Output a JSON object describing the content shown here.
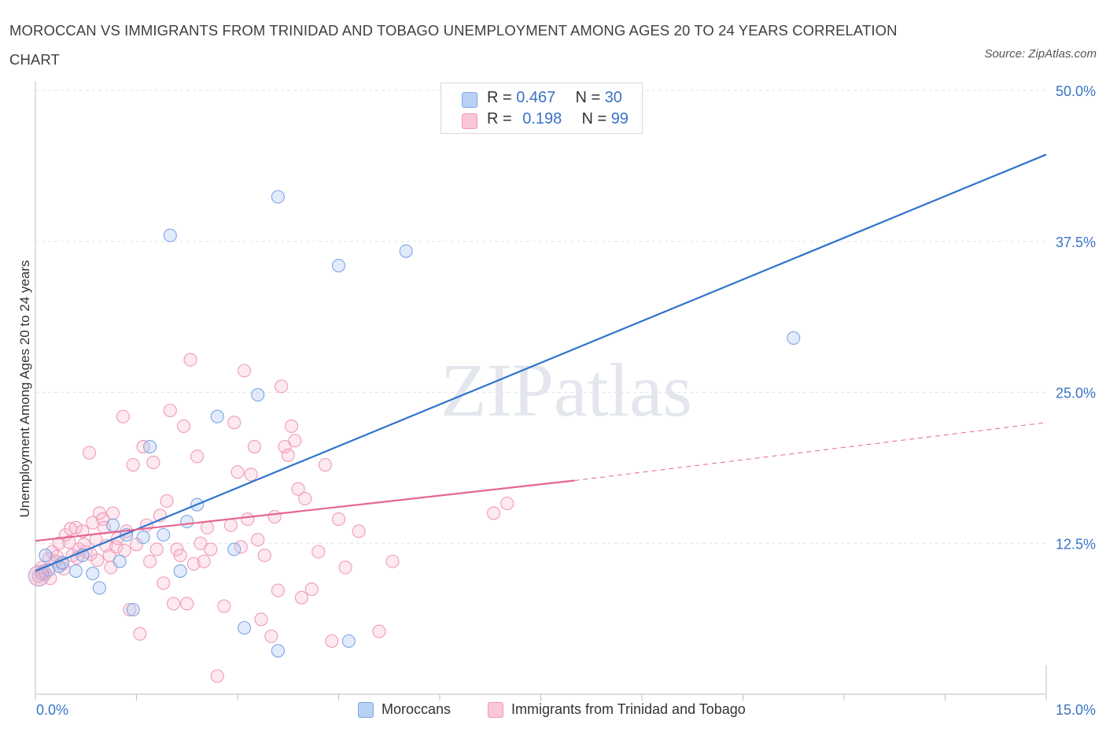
{
  "chart_data": {
    "type": "scatter",
    "title": "MOROCCAN VS IMMIGRANTS FROM TRINIDAD AND TOBAGO UNEMPLOYMENT AMONG AGES 20 TO 24 YEARS CORRELATION CHART",
    "source": "Source: ZipAtlas.com",
    "xlabel": "",
    "ylabel": "Unemployment Among Ages 20 to 24 years",
    "xlim": [
      0,
      15
    ],
    "ylim": [
      0,
      50
    ],
    "x_tick_labels": [
      "0.0%",
      "15.0%"
    ],
    "y_ticks": [
      12.5,
      25,
      37.5,
      50
    ],
    "y_tick_labels": [
      "12.5%",
      "25.0%",
      "37.5%",
      "50.0%"
    ],
    "grid": true,
    "watermark": "ZIPatlas",
    "stats_box": {
      "rows": [
        {
          "r_label": "R =",
          "r_value": "0.467",
          "n_label": "N =",
          "n_value": "30"
        },
        {
          "r_label": "R =",
          "r_value": "0.198",
          "n_label": "N =",
          "n_value": "99"
        }
      ]
    },
    "series": [
      {
        "name": "Moroccans",
        "color": "#8fb5ec",
        "line_color": "#2f74cc",
        "r": 0.467,
        "n": 30,
        "trendline": {
          "x": [
            0,
            15
          ],
          "y": [
            10.2,
            44.7
          ]
        },
        "points": [
          [
            0.1,
            10.0
          ],
          [
            0.15,
            11.5
          ],
          [
            0.2,
            10.3
          ],
          [
            0.35,
            10.6
          ],
          [
            0.4,
            10.9
          ],
          [
            0.6,
            10.2
          ],
          [
            0.7,
            11.5
          ],
          [
            0.85,
            10.0
          ],
          [
            0.95,
            8.8
          ],
          [
            1.15,
            14.0
          ],
          [
            1.25,
            11.0
          ],
          [
            1.35,
            13.2
          ],
          [
            1.45,
            7.0
          ],
          [
            1.6,
            13.0
          ],
          [
            1.7,
            20.5
          ],
          [
            1.9,
            13.2
          ],
          [
            2.15,
            10.2
          ],
          [
            2.25,
            14.3
          ],
          [
            2.4,
            15.7
          ],
          [
            2.7,
            23.0
          ],
          [
            2.95,
            12.0
          ],
          [
            3.1,
            5.5
          ],
          [
            3.3,
            24.8
          ],
          [
            3.6,
            3.6
          ],
          [
            4.5,
            35.5
          ],
          [
            4.65,
            4.4
          ],
          [
            5.5,
            36.7
          ],
          [
            11.25,
            29.5
          ],
          [
            2.0,
            38.0
          ],
          [
            3.6,
            41.2
          ]
        ]
      },
      {
        "name": "Immigrants from Trinidad and Tobago",
        "color": "#f5a8c3",
        "line_color": "#e5668f",
        "r": 0.198,
        "n": 99,
        "trendline": {
          "x": [
            0,
            8.0
          ],
          "y": [
            12.7,
            17.7
          ]
        },
        "trendline_extension": {
          "x": [
            8.0,
            15
          ],
          "y": [
            17.7,
            22.5
          ]
        },
        "points": [
          [
            0.05,
            9.8
          ],
          [
            0.1,
            10.5
          ],
          [
            0.15,
            10.0
          ],
          [
            0.2,
            11.2
          ],
          [
            0.25,
            11.8
          ],
          [
            0.3,
            11.0
          ],
          [
            0.35,
            12.5
          ],
          [
            0.4,
            10.8
          ],
          [
            0.45,
            13.2
          ],
          [
            0.5,
            12.6
          ],
          [
            0.55,
            11.5
          ],
          [
            0.6,
            13.8
          ],
          [
            0.65,
            12.0
          ],
          [
            0.7,
            13.5
          ],
          [
            0.75,
            11.8
          ],
          [
            0.8,
            20.0
          ],
          [
            0.85,
            14.2
          ],
          [
            0.9,
            12.8
          ],
          [
            0.95,
            15.0
          ],
          [
            1.0,
            14.5
          ],
          [
            1.05,
            12.3
          ],
          [
            1.1,
            11.5
          ],
          [
            1.15,
            15.0
          ],
          [
            1.2,
            12.2
          ],
          [
            1.3,
            23.0
          ],
          [
            1.35,
            13.5
          ],
          [
            1.4,
            7.0
          ],
          [
            1.45,
            19.0
          ],
          [
            1.5,
            12.4
          ],
          [
            1.55,
            5.0
          ],
          [
            1.6,
            20.5
          ],
          [
            1.65,
            14.0
          ],
          [
            1.7,
            11.0
          ],
          [
            1.75,
            19.2
          ],
          [
            1.8,
            12.0
          ],
          [
            1.85,
            14.8
          ],
          [
            1.9,
            9.2
          ],
          [
            1.95,
            16.0
          ],
          [
            2.0,
            23.5
          ],
          [
            2.05,
            7.5
          ],
          [
            2.1,
            12.0
          ],
          [
            2.15,
            11.5
          ],
          [
            2.2,
            22.2
          ],
          [
            2.25,
            7.5
          ],
          [
            2.3,
            27.7
          ],
          [
            2.35,
            10.8
          ],
          [
            2.4,
            19.7
          ],
          [
            2.45,
            12.5
          ],
          [
            2.5,
            11.0
          ],
          [
            2.55,
            13.8
          ],
          [
            2.6,
            12.0
          ],
          [
            2.7,
            1.5
          ],
          [
            2.8,
            7.3
          ],
          [
            2.9,
            14.0
          ],
          [
            2.95,
            22.5
          ],
          [
            3.0,
            18.4
          ],
          [
            3.05,
            12.2
          ],
          [
            3.1,
            26.8
          ],
          [
            3.15,
            14.5
          ],
          [
            3.2,
            18.2
          ],
          [
            3.25,
            20.5
          ],
          [
            3.3,
            12.8
          ],
          [
            3.35,
            6.2
          ],
          [
            3.4,
            11.5
          ],
          [
            3.5,
            4.8
          ],
          [
            3.55,
            14.7
          ],
          [
            3.6,
            8.6
          ],
          [
            3.65,
            25.5
          ],
          [
            3.7,
            20.5
          ],
          [
            3.75,
            19.8
          ],
          [
            3.8,
            22.2
          ],
          [
            3.85,
            21.0
          ],
          [
            3.9,
            17.0
          ],
          [
            3.95,
            8.0
          ],
          [
            4.0,
            16.2
          ],
          [
            4.1,
            8.7
          ],
          [
            4.2,
            11.8
          ],
          [
            4.3,
            19.0
          ],
          [
            4.4,
            4.4
          ],
          [
            4.5,
            14.5
          ],
          [
            4.6,
            10.5
          ],
          [
            4.8,
            13.5
          ],
          [
            5.1,
            5.2
          ],
          [
            5.3,
            11.0
          ],
          [
            6.8,
            15.0
          ],
          [
            7.0,
            15.8
          ],
          [
            0.12,
            10.2
          ],
          [
            0.22,
            9.6
          ],
          [
            0.32,
            11.4
          ],
          [
            0.42,
            10.4
          ],
          [
            0.52,
            13.7
          ],
          [
            0.62,
            11.3
          ],
          [
            0.72,
            12.4
          ],
          [
            0.82,
            11.6
          ],
          [
            0.92,
            11.1
          ],
          [
            1.02,
            13.8
          ],
          [
            1.12,
            10.5
          ],
          [
            1.22,
            12.9
          ],
          [
            1.32,
            11.9
          ]
        ]
      }
    ]
  }
}
